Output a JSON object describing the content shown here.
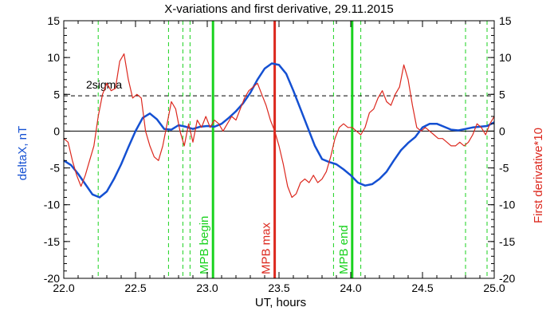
{
  "chart_data": {
    "type": "line",
    "title": "X-variations and first derivative, 29.11.2015",
    "xlabel": "UT, hours",
    "ylabel_left": "deltaX, nT",
    "ylabel_right": "First derivative*10",
    "xlim": [
      22.0,
      25.0
    ],
    "ylim": [
      -20,
      15
    ],
    "x_ticks": [
      "22.0",
      "22.5",
      "23.0",
      "23.5",
      "24.0",
      "24.5",
      "25.0"
    ],
    "y_ticks_left": [
      "15",
      "10",
      "5",
      "0",
      "-5",
      "-10",
      "-15",
      "-20"
    ],
    "y_ticks_right": [
      "15",
      "10",
      "5",
      "0",
      "-5",
      "-10",
      "-15",
      "-20"
    ],
    "sigma_label": "2sigma",
    "sigma_level": 4.8,
    "zero_line": 0,
    "colors": {
      "deltaX": "#1450d2",
      "derivative": "#dc281e",
      "markers": "#19d21e",
      "mpb_max": "#dc281e",
      "axes": "#000000"
    },
    "vertical_dashed_x": [
      22.24,
      22.73,
      22.83,
      22.88,
      23.88,
      24.07,
      24.8,
      24.95
    ],
    "markers": [
      {
        "label": "MPB begin",
        "x": 23.04,
        "color": "#19d21e"
      },
      {
        "label": "MPB max",
        "x": 23.47,
        "color": "#dc281e"
      },
      {
        "label": "MPB end",
        "x": 24.01,
        "color": "#19d21e"
      }
    ],
    "series": [
      {
        "key": "deltaX",
        "x": [
          22.0,
          22.05,
          22.1,
          22.15,
          22.2,
          22.25,
          22.3,
          22.35,
          22.4,
          22.45,
          22.5,
          22.55,
          22.6,
          22.65,
          22.7,
          22.75,
          22.8,
          22.85,
          22.9,
          22.95,
          23.0,
          23.05,
          23.1,
          23.15,
          23.2,
          23.25,
          23.3,
          23.35,
          23.4,
          23.45,
          23.5,
          23.55,
          23.6,
          23.65,
          23.7,
          23.75,
          23.8,
          23.85,
          23.9,
          23.95,
          24.0,
          24.05,
          24.1,
          24.15,
          24.2,
          24.25,
          24.3,
          24.35,
          24.4,
          24.45,
          24.5,
          24.55,
          24.6,
          24.65,
          24.7,
          24.75,
          24.8,
          24.85,
          24.9,
          24.95,
          25.0
        ],
        "y": [
          -4,
          -4.6,
          -5.8,
          -7.2,
          -8.6,
          -9.0,
          -8.2,
          -6.5,
          -4.5,
          -2.2,
          0.0,
          1.8,
          2.4,
          1.6,
          0.3,
          0.2,
          0.8,
          0.6,
          0.3,
          0.6,
          0.7,
          0.6,
          1.0,
          1.8,
          2.7,
          3.8,
          5.2,
          7.0,
          8.5,
          9.2,
          9.0,
          7.8,
          5.5,
          3.0,
          0.5,
          -2.0,
          -3.8,
          -4.2,
          -4.5,
          -5.2,
          -6.0,
          -7.0,
          -7.4,
          -7.2,
          -6.5,
          -5.5,
          -4.0,
          -2.6,
          -1.6,
          -0.8,
          0.5,
          1.0,
          1.0,
          0.6,
          0.2,
          0.1,
          0.3,
          0.5,
          0.6,
          0.7,
          1.2
        ]
      },
      {
        "key": "derivative",
        "x": [
          22.0,
          22.03,
          22.06,
          22.09,
          22.12,
          22.15,
          22.18,
          22.21,
          22.24,
          22.27,
          22.3,
          22.33,
          22.36,
          22.39,
          22.42,
          22.45,
          22.48,
          22.51,
          22.54,
          22.57,
          22.6,
          22.63,
          22.66,
          22.69,
          22.72,
          22.75,
          22.78,
          22.81,
          22.84,
          22.87,
          22.9,
          22.93,
          22.96,
          22.99,
          23.02,
          23.05,
          23.08,
          23.11,
          23.14,
          23.17,
          23.2,
          23.23,
          23.26,
          23.29,
          23.32,
          23.35,
          23.38,
          23.41,
          23.44,
          23.47,
          23.5,
          23.53,
          23.56,
          23.59,
          23.62,
          23.65,
          23.68,
          23.71,
          23.74,
          23.77,
          23.8,
          23.83,
          23.86,
          23.89,
          23.92,
          23.95,
          23.98,
          24.01,
          24.04,
          24.07,
          24.1,
          24.13,
          24.16,
          24.19,
          24.22,
          24.25,
          24.28,
          24.31,
          24.34,
          24.37,
          24.4,
          24.43,
          24.46,
          24.49,
          24.52,
          24.55,
          24.58,
          24.61,
          24.64,
          24.67,
          24.7,
          24.73,
          24.76,
          24.79,
          24.82,
          24.85,
          24.88,
          24.91,
          24.94,
          24.97,
          25.0
        ],
        "y": [
          -1,
          -1.5,
          -4,
          -6,
          -7.5,
          -6,
          -4,
          -2,
          2,
          5,
          6.5,
          5.5,
          5.8,
          9.5,
          10.5,
          7,
          4.5,
          5,
          4.5,
          0,
          -2,
          -3.5,
          -4,
          -2,
          1,
          4,
          3,
          0,
          -2,
          1,
          -1.5,
          1.5,
          0.5,
          2,
          0.5,
          1.5,
          1,
          0,
          1,
          2,
          1.5,
          3,
          4.5,
          5.5,
          6,
          6.5,
          5,
          3.5,
          1.5,
          0,
          -2,
          -4.5,
          -7.5,
          -9,
          -8.5,
          -7,
          -6.5,
          -7,
          -6,
          -7,
          -6.5,
          -5.5,
          -3.5,
          -1,
          0.5,
          1,
          0.5,
          0.5,
          0,
          -0.5,
          0.5,
          2.5,
          3,
          4.5,
          5.5,
          4,
          3.5,
          5,
          6,
          9,
          7,
          3.5,
          0.5,
          0,
          0.5,
          0,
          -0.5,
          -1,
          -1,
          -1.5,
          -2,
          -2,
          -1.5,
          -2,
          -1.5,
          -0.5,
          1,
          0.5,
          -0.5,
          1,
          2
        ]
      }
    ]
  }
}
